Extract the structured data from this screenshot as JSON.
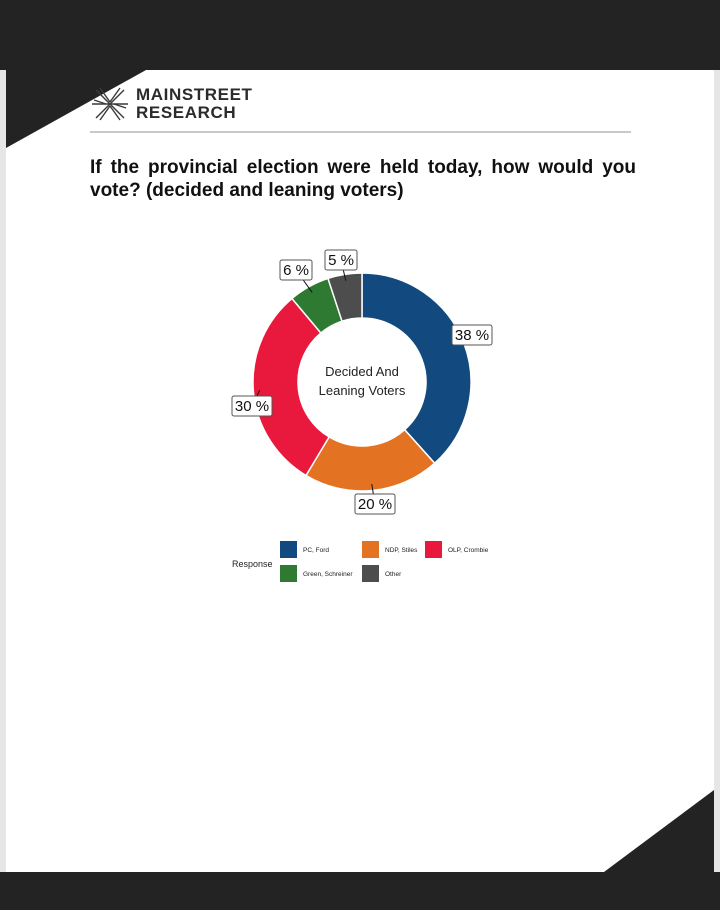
{
  "logo": {
    "line1": "MAINSTREET",
    "line2": "RESEARCH"
  },
  "question": "If the provincial election were held today, how would you vote? (decided and leaning voters)",
  "chart_data": {
    "type": "pie",
    "donut": true,
    "center_label": [
      "Decided And",
      "Leaning Voters"
    ],
    "legend_title": "Response",
    "series": [
      {
        "name": "PC, Ford",
        "value": 38,
        "label": "38 %",
        "color": "#124a80"
      },
      {
        "name": "NDP, Stiles",
        "value": 20,
        "label": "20 %",
        "color": "#e37322"
      },
      {
        "name": "OLP, Crombie",
        "value": 30,
        "label": "30 %",
        "color": "#e8193c"
      },
      {
        "name": "Green, Schreiner",
        "value": 6,
        "label": "6 %",
        "color": "#2f7a33"
      },
      {
        "name": "Other",
        "value": 5,
        "label": "5 %",
        "color": "#4d4d4d"
      }
    ]
  }
}
